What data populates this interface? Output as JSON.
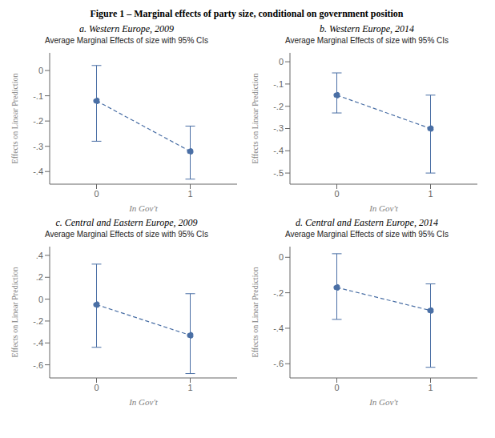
{
  "title": "Figure 1 – Marginal effects of party size, conditional on government position",
  "chart_data": [
    {
      "type": "line",
      "title": "a. Western Europe, 2009",
      "subtitle": "Average Marginal Effects of size with 95% CIs",
      "xlabel": "In Gov't",
      "ylabel": "Effects on Linear Prediction",
      "x": [
        0,
        1
      ],
      "values": [
        -0.12,
        -0.32
      ],
      "ci_low": [
        -0.28,
        -0.43
      ],
      "ci_high": [
        0.02,
        -0.22
      ],
      "xlim": [
        -0.5,
        1.5
      ],
      "xticks": [
        0,
        1
      ],
      "ylim": [
        -0.45,
        0.07
      ],
      "yticks": [
        0,
        {
          "value": -0.1,
          "label": "-.1"
        },
        {
          "value": -0.2,
          "label": "-.2"
        },
        {
          "value": -0.3,
          "label": "-.3"
        },
        {
          "value": -0.4,
          "label": "-.4"
        }
      ],
      "color": "#4a6fa5",
      "marker": "circle",
      "line_style": "dashed",
      "grid": false
    },
    {
      "type": "line",
      "title": "b. Western Europe, 2014",
      "subtitle": "Average Marginal Effects of size with 95% CIs",
      "xlabel": "In Gov't",
      "ylabel": "Effects on Linear Prediction",
      "x": [
        0,
        1
      ],
      "values": [
        -0.15,
        -0.3
      ],
      "ci_low": [
        -0.23,
        -0.5
      ],
      "ci_high": [
        -0.05,
        -0.15
      ],
      "xlim": [
        -0.5,
        1.5
      ],
      "xticks": [
        0,
        1
      ],
      "ylim": [
        -0.55,
        0.04
      ],
      "yticks": [
        0,
        {
          "value": -0.1,
          "label": "-.1"
        },
        {
          "value": -0.2,
          "label": "-.2"
        },
        {
          "value": -0.3,
          "label": "-.3"
        },
        {
          "value": -0.4,
          "label": "-.4"
        },
        {
          "value": -0.5,
          "label": "-.5"
        }
      ],
      "color": "#4a6fa5",
      "marker": "circle",
      "line_style": "dashed",
      "grid": false
    },
    {
      "type": "line",
      "title": "c. Central and Eastern Europe, 2009",
      "subtitle": "Average Marginal Effects of size with 95% CIs",
      "xlabel": "In Gov't",
      "ylabel": "Effects on Linear Prediction",
      "x": [
        0,
        1
      ],
      "values": [
        -0.05,
        -0.33
      ],
      "ci_low": [
        -0.44,
        -0.68
      ],
      "ci_high": [
        0.32,
        0.05
      ],
      "xlim": [
        -0.5,
        1.5
      ],
      "xticks": [
        0,
        1
      ],
      "ylim": [
        -0.72,
        0.48
      ],
      "yticks": [
        {
          "value": 0.4,
          "label": ".4"
        },
        {
          "value": 0.2,
          "label": ".2"
        },
        0,
        {
          "value": -0.2,
          "label": "-.2"
        },
        {
          "value": -0.4,
          "label": "-.4"
        },
        {
          "value": -0.6,
          "label": "-.6"
        }
      ],
      "color": "#4a6fa5",
      "marker": "circle",
      "line_style": "dashed",
      "grid": false
    },
    {
      "type": "line",
      "title": "d. Central and Eastern Europe, 2014",
      "subtitle": "Average Marginal Effects of size with 95% CIs",
      "xlabel": "In Gov't",
      "ylabel": "Effects on Linear Prediction",
      "x": [
        0,
        1
      ],
      "values": [
        -0.17,
        -0.3
      ],
      "ci_low": [
        -0.35,
        -0.62
      ],
      "ci_high": [
        0.02,
        -0.15
      ],
      "xlim": [
        -0.5,
        1.5
      ],
      "xticks": [
        0,
        1
      ],
      "ylim": [
        -0.68,
        0.06
      ],
      "yticks": [
        0,
        {
          "value": -0.2,
          "label": "-.2"
        },
        {
          "value": -0.4,
          "label": "-.4"
        },
        {
          "value": -0.6,
          "label": "-.6"
        }
      ],
      "color": "#4a6fa5",
      "marker": "circle",
      "line_style": "dashed",
      "grid": false
    }
  ]
}
